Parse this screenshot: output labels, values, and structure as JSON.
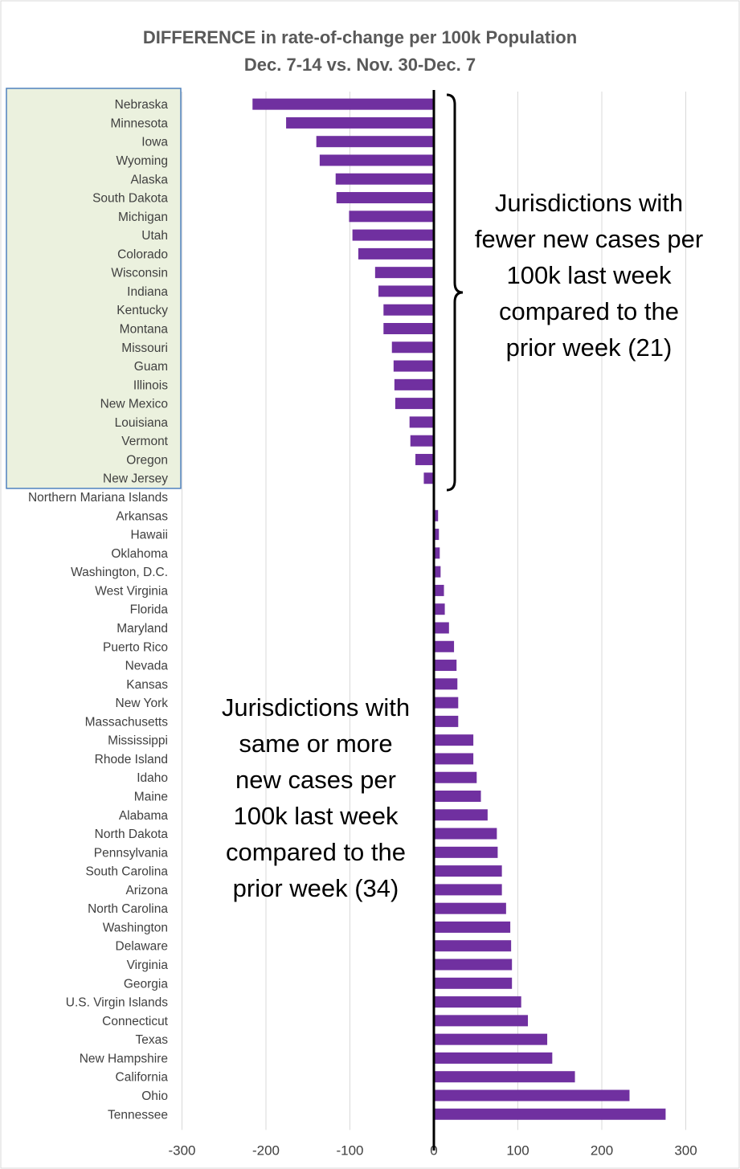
{
  "chart_data": {
    "type": "bar",
    "orientation": "horizontal",
    "title": "DIFFERENCE in rate-of-change per 100k Population",
    "subtitle": "Dec. 7-14 vs. Nov. 30-Dec. 7",
    "xlim": [
      -300,
      300
    ],
    "xticks": [
      -300,
      -200,
      -100,
      0,
      100,
      200,
      300
    ],
    "grid": true,
    "bar_color": "#7030A0",
    "highlight_color": "#EBF1DE",
    "highlight_border": "#4F81BD",
    "categories": [
      "Nebraska",
      "Minnesota",
      "Iowa",
      "Wyoming",
      "Alaska",
      "South Dakota",
      "Michigan",
      "Utah",
      "Colorado",
      "Wisconsin",
      "Indiana",
      "Kentucky",
      "Montana",
      "Missouri",
      "Guam",
      "Illinois",
      "New Mexico",
      "Louisiana",
      "Vermont",
      "Oregon",
      "New Jersey",
      "Northern Mariana Islands",
      "Arkansas",
      "Hawaii",
      "Oklahoma",
      "Washington, D.C.",
      "West Virginia",
      "Florida",
      "Maryland",
      "Puerto Rico",
      "Nevada",
      "Kansas",
      "New York",
      "Massachusetts",
      "Mississippi",
      "Rhode Island",
      "Idaho",
      "Maine",
      "Alabama",
      "North Dakota",
      "Pennsylvania",
      "South Carolina",
      "Arizona",
      "North Carolina",
      "Washington",
      "Delaware",
      "Virginia",
      "Georgia",
      "U.S. Virgin Islands",
      "Connecticut",
      "Texas",
      "New Hampshire",
      "California",
      "Ohio",
      "Tennessee"
    ],
    "values": [
      -216,
      -176,
      -140,
      -136,
      -117,
      -116,
      -101,
      -97,
      -90,
      -70,
      -66,
      -60,
      -60,
      -50,
      -48,
      -47,
      -46,
      -29,
      -28,
      -22,
      -12,
      0,
      5,
      6,
      7,
      8,
      12,
      13,
      18,
      24,
      27,
      28,
      29,
      29,
      47,
      47,
      51,
      56,
      64,
      75,
      76,
      81,
      81,
      86,
      91,
      92,
      93,
      93,
      104,
      112,
      135,
      141,
      168,
      233,
      276
    ],
    "highlighted_count": 21,
    "annotations": {
      "fewer": [
        "Jurisdictions with",
        "fewer new cases per",
        "100k last week",
        "compared to the",
        "prior week (21)"
      ],
      "more": [
        "Jurisdictions with",
        "same or more",
        "new cases per",
        "100k last week",
        "compared to the",
        "prior week (34)"
      ]
    }
  }
}
